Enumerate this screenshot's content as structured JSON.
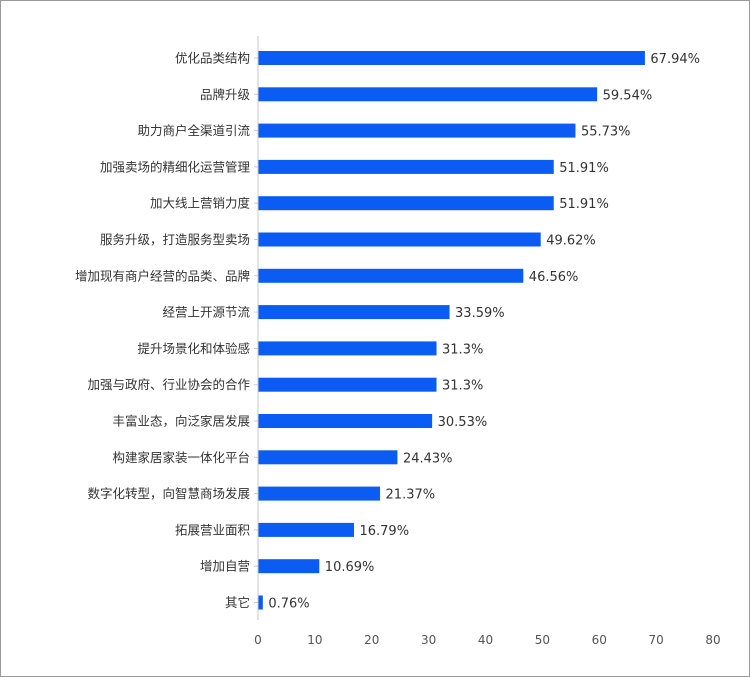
{
  "chart_data": {
    "type": "bar",
    "orientation": "horizontal",
    "title": "",
    "xlabel": "",
    "ylabel": "",
    "xlim": [
      0,
      80
    ],
    "x_ticks": [
      "0",
      "10",
      "20",
      "30",
      "40",
      "50",
      "60",
      "70",
      "80"
    ],
    "x_tick_values": [
      0,
      10,
      20,
      30,
      40,
      50,
      60,
      70,
      80
    ],
    "grid": false,
    "bar_color": "#0a5cf2",
    "categories": [
      "优化品类结构",
      "品牌升级",
      "助力商户全渠道引流",
      "加强卖场的精细化运营管理",
      "加大线上营销力度",
      "服务升级，打造服务型卖场",
      "增加现有商户经营的品类、品牌",
      "经营上开源节流",
      "提升场景化和体验感",
      "加强与政府、行业协会的合作",
      "丰富业态，向泛家居发展",
      "构建家居家装一体化平台",
      "数字化转型，向智慧商场发展",
      "拓展营业面积",
      "增加自营",
      "其它"
    ],
    "values": [
      67.94,
      59.54,
      55.73,
      51.91,
      51.91,
      49.62,
      46.56,
      33.59,
      31.3,
      31.3,
      30.53,
      24.43,
      21.37,
      16.79,
      10.69,
      0.76
    ],
    "value_labels": [
      "67.94%",
      "59.54%",
      "55.73%",
      "51.91%",
      "51.91%",
      "49.62%",
      "46.56%",
      "33.59%",
      "31.3%",
      "31.3%",
      "30.53%",
      "24.43%",
      "21.37%",
      "16.79%",
      "10.69%",
      "0.76%"
    ]
  }
}
